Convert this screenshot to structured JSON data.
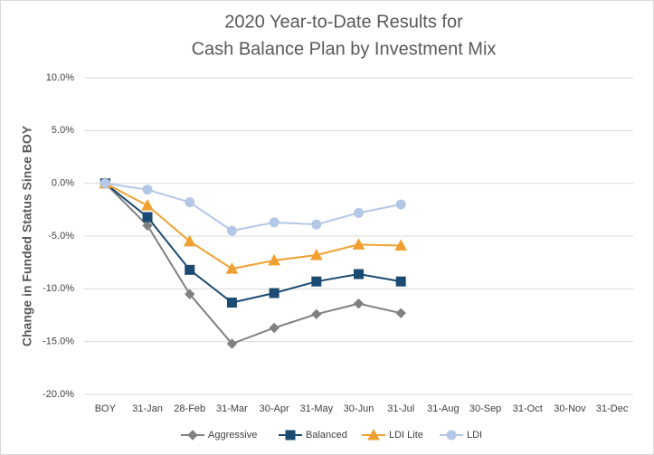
{
  "chart_data": {
    "type": "line",
    "title": [
      "2020 Year-to-Date Results for",
      "Cash Balance Plan by Investment Mix"
    ],
    "y_label": "Change in Funded Status Since BOY",
    "categories": [
      "BOY",
      "31-Jan",
      "28-Feb",
      "31-Mar",
      "30-Apr",
      "31-May",
      "30-Jun",
      "31-Jul",
      "31-Aug",
      "30-Sep",
      "31-Oct",
      "30-Nov",
      "31-Dec"
    ],
    "series": [
      {
        "name": "Aggressive",
        "color": "#808080",
        "marker": "diamond",
        "values": [
          0,
          -4.0,
          -10.5,
          -15.2,
          -13.7,
          -12.4,
          -11.4,
          -12.3,
          null,
          null,
          null,
          null,
          null
        ]
      },
      {
        "name": "Balanced",
        "color": "#1b4a72",
        "marker": "square",
        "values": [
          0,
          -3.2,
          -8.2,
          -11.3,
          -10.4,
          -9.3,
          -8.6,
          -9.3,
          null,
          null,
          null,
          null,
          null
        ]
      },
      {
        "name": "LDI Lite",
        "color": "#f0a030",
        "marker": "triangle",
        "values": [
          0,
          -2.1,
          -5.5,
          -8.1,
          -7.3,
          -6.8,
          -5.8,
          -5.9,
          null,
          null,
          null,
          null,
          null
        ]
      },
      {
        "name": "LDI",
        "color": "#b4c7e7",
        "marker": "circle",
        "values": [
          0,
          -0.6,
          -1.8,
          -4.5,
          -3.7,
          -3.9,
          -2.8,
          -2.0,
          null,
          null,
          null,
          null,
          null
        ]
      }
    ],
    "ylim": [
      -20,
      10
    ],
    "yticks": [
      {
        "value": -20,
        "label": "-20.0%"
      },
      {
        "value": -15,
        "label": "-15.0%"
      },
      {
        "value": -10,
        "label": "-10.0%"
      },
      {
        "value": -5,
        "label": "-5.0%"
      },
      {
        "value": 0,
        "label": "0.0%"
      },
      {
        "value": 5,
        "label": "5.0%"
      },
      {
        "value": 10,
        "label": "10.0%"
      }
    ],
    "grid": true,
    "legend": "bottom"
  }
}
